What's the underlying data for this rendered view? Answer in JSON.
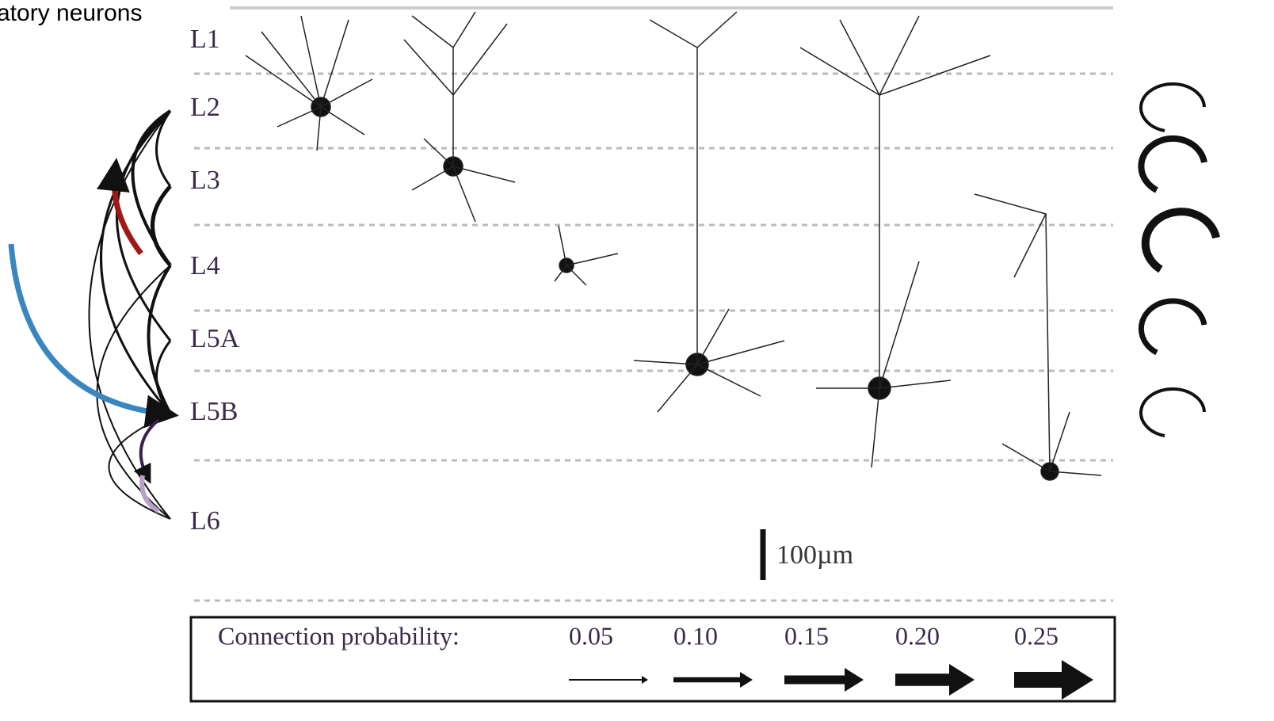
{
  "header": {
    "title": "atory neurons"
  },
  "layers": [
    "L1",
    "L2",
    "L3",
    "L4",
    "L5A",
    "L5B",
    "L6"
  ],
  "scale_bar": "100µm",
  "legend": {
    "title": "Connection probability:",
    "values": [
      "0.05",
      "0.10",
      "0.15",
      "0.20",
      "0.25"
    ]
  }
}
